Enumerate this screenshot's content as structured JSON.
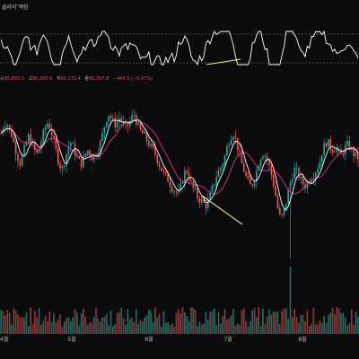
{
  "indicator_pane": {
    "name": "클라이 ̈액함"
  },
  "ohlc_readout": {
    "open_label": "시",
    "open_value": "95,803.3",
    "high_label": "고",
    "high_value": "96,265.6",
    "low_label": "저",
    "low_value": "95,172.4",
    "close_label": "종",
    "close_value": "95,357.8",
    "change_value": "−445.5 (−0.47%)"
  },
  "colors": {
    "background": "#0b0b0d",
    "up_candle": "#26a69a",
    "down_candle": "#ef5350",
    "ma_fast": "#ffffff",
    "ma_slow": "#e0338a",
    "oscillator_line": "#ffffff",
    "divergence_line": "#f0e08a",
    "axis_label": "#bdbdbd"
  },
  "chart_data": {
    "type": "candlestick",
    "x_labels": [
      "4월",
      "5월",
      "6월",
      "7월",
      "8월"
    ],
    "price_series_shape": [
      0.72,
      0.78,
      0.8,
      0.74,
      0.7,
      0.62,
      0.55,
      0.5,
      0.58,
      0.64,
      0.7,
      0.66,
      0.6,
      0.57,
      0.62,
      0.7,
      0.76,
      0.8,
      0.74,
      0.66,
      0.58,
      0.5,
      0.46,
      0.52,
      0.6,
      0.66,
      0.62,
      0.56,
      0.52,
      0.5,
      0.54,
      0.6,
      0.58,
      0.54,
      0.56,
      0.6,
      0.66,
      0.74,
      0.82,
      0.86,
      0.82,
      0.78,
      0.8,
      0.84,
      0.78,
      0.76,
      0.78,
      0.82,
      0.86,
      0.8,
      0.74,
      0.72,
      0.7,
      0.66,
      0.62,
      0.6,
      0.56,
      0.5,
      0.46,
      0.42,
      0.4,
      0.36,
      0.32,
      0.3,
      0.28,
      0.34,
      0.42,
      0.46,
      0.4,
      0.34,
      0.3,
      0.26,
      0.24,
      0.22,
      0.2,
      0.24,
      0.3,
      0.36,
      0.42,
      0.46,
      0.5,
      0.56,
      0.64,
      0.7,
      0.72,
      0.66,
      0.58,
      0.5,
      0.44,
      0.38,
      0.34,
      0.36,
      0.42,
      0.5,
      0.56,
      0.58,
      0.54,
      0.48,
      0.4,
      0.3,
      0.18,
      0.1,
      0.14,
      0.22,
      0.32,
      0.4,
      0.46,
      0.44,
      0.4,
      0.36,
      0.34,
      0.38,
      0.4,
      0.42,
      0.46,
      0.5,
      0.58,
      0.64,
      0.66,
      0.62,
      0.6,
      0.62,
      0.58,
      0.56,
      0.6,
      0.64,
      0.62,
      0.58,
      0.56,
      0.54
    ]
  },
  "labels": {}
}
